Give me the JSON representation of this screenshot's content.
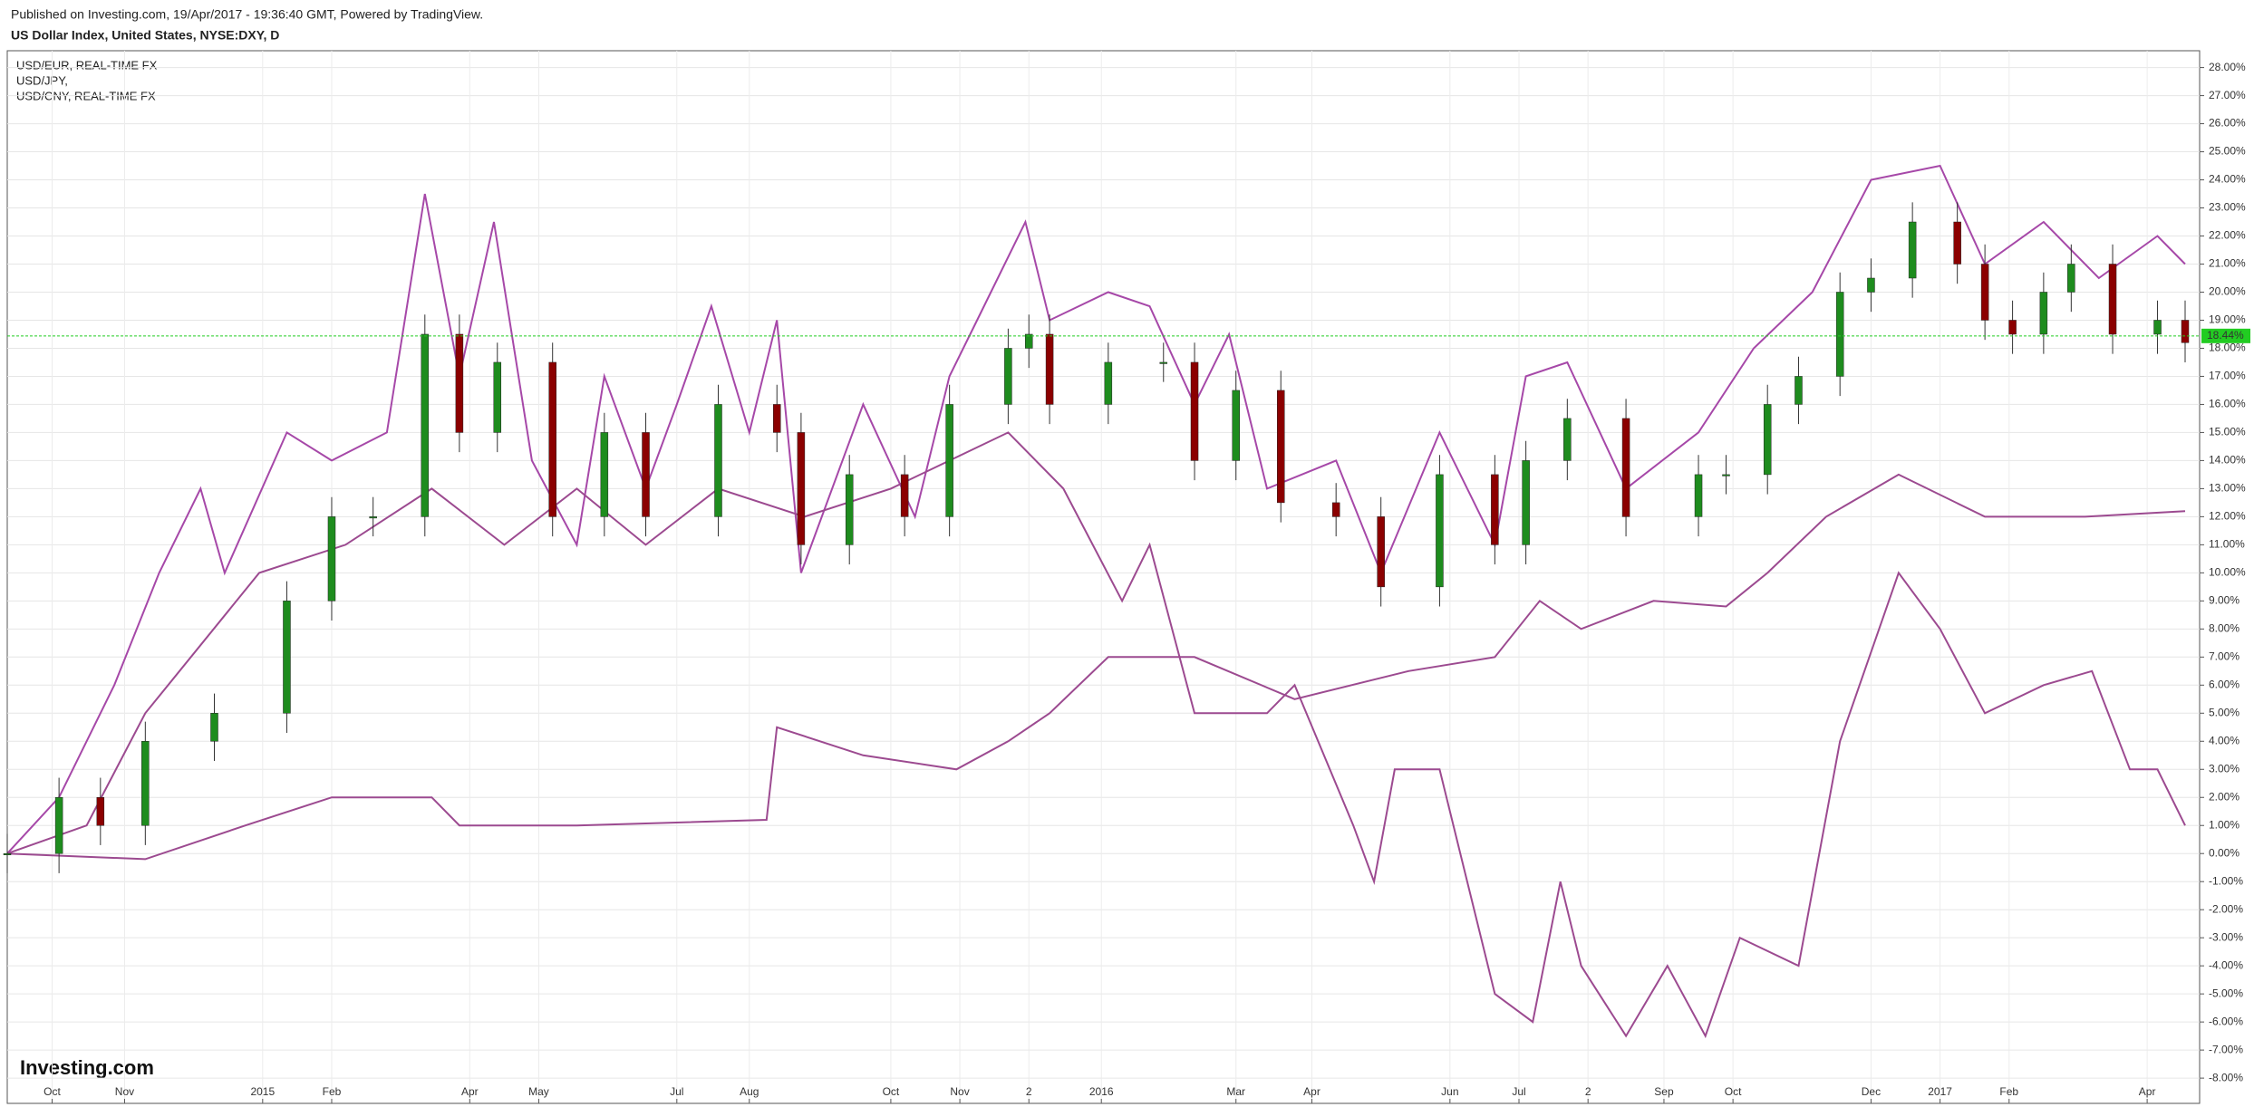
{
  "header": {
    "published": "Published on Investing.com, 19/Apr/2017 - 19:36:40 GMT, Powered by TradingView.",
    "symbol": "US Dollar Index, United States, NYSE:DXY, D"
  },
  "logo": "Investing.com",
  "chart_data": {
    "type": "candlestick",
    "legend": [
      "USD/EUR, REAL-TIME FX",
      "USD/JPY,",
      "USD/CNY, REAL-TIME FX"
    ],
    "xlim": [
      0,
      631
    ],
    "xticks": [
      {
        "value": 13,
        "label": "Oct"
      },
      {
        "value": 34,
        "label": "Nov"
      },
      {
        "value": 74,
        "label": "2015"
      },
      {
        "value": 94,
        "label": "Feb"
      },
      {
        "value": 134,
        "label": "Apr"
      },
      {
        "value": 154,
        "label": "May"
      },
      {
        "value": 194,
        "label": "Jul"
      },
      {
        "value": 215,
        "label": "Aug"
      },
      {
        "value": 256,
        "label": "Oct"
      },
      {
        "value": 276,
        "label": "Nov"
      },
      {
        "value": 296,
        "label": "2"
      },
      {
        "value": 317,
        "label": "2016"
      },
      {
        "value": 356,
        "label": "Mar"
      },
      {
        "value": 378,
        "label": "Apr"
      },
      {
        "value": 418,
        "label": "Jun"
      },
      {
        "value": 438,
        "label": "Jul"
      },
      {
        "value": 458,
        "label": "2"
      },
      {
        "value": 480,
        "label": "Sep"
      },
      {
        "value": 500,
        "label": "Oct"
      },
      {
        "value": 540,
        "label": "Dec"
      },
      {
        "value": 560,
        "label": "2017"
      },
      {
        "value": 580,
        "label": "Feb"
      },
      {
        "value": 620,
        "label": "Apr"
      }
    ],
    "ylim": [
      -8.9,
      28.6
    ],
    "yticks": [
      {
        "value": -8,
        "label": "-8.00%"
      },
      {
        "value": -7,
        "label": "-7.00%"
      },
      {
        "value": -6,
        "label": "-6.00%"
      },
      {
        "value": -5,
        "label": "-5.00%"
      },
      {
        "value": -4,
        "label": "-4.00%"
      },
      {
        "value": -3,
        "label": "-3.00%"
      },
      {
        "value": -2,
        "label": "-2.00%"
      },
      {
        "value": -1,
        "label": "-1.00%"
      },
      {
        "value": 0,
        "label": "0.00%"
      },
      {
        "value": 1,
        "label": "1.00%"
      },
      {
        "value": 2,
        "label": "2.00%"
      },
      {
        "value": 3,
        "label": "3.00%"
      },
      {
        "value": 4,
        "label": "4.00%"
      },
      {
        "value": 5,
        "label": "5.00%"
      },
      {
        "value": 6,
        "label": "6.00%"
      },
      {
        "value": 7,
        "label": "7.00%"
      },
      {
        "value": 8,
        "label": "8.00%"
      },
      {
        "value": 9,
        "label": "9.00%"
      },
      {
        "value": 10,
        "label": "10.00%"
      },
      {
        "value": 11,
        "label": "11.00%"
      },
      {
        "value": 12,
        "label": "12.00%"
      },
      {
        "value": 13,
        "label": "13.00%"
      },
      {
        "value": 14,
        "label": "14.00%"
      },
      {
        "value": 15,
        "label": "15.00%"
      },
      {
        "value": 16,
        "label": "16.00%"
      },
      {
        "value": 17,
        "label": "17.00%"
      },
      {
        "value": 18,
        "label": "18.00%"
      },
      {
        "value": 19,
        "label": "19.00%"
      },
      {
        "value": 20,
        "label": "20.00%"
      },
      {
        "value": 21,
        "label": "21.00%"
      },
      {
        "value": 22,
        "label": "22.00%"
      },
      {
        "value": 23,
        "label": "23.00%"
      },
      {
        "value": 24,
        "label": "24.00%"
      },
      {
        "value": 25,
        "label": "25.00%"
      },
      {
        "value": 26,
        "label": "26.00%"
      },
      {
        "value": 27,
        "label": "27.00%"
      },
      {
        "value": 28,
        "label": "28.00%"
      }
    ],
    "grid": true,
    "ref_line": {
      "value": 18.44,
      "label": "18.44%",
      "color": "#22cc22"
    },
    "candles": {
      "up_color": "#1e8c1e",
      "down_color": "#8b0000",
      "x": [
        0,
        15,
        27,
        40,
        60,
        81,
        94,
        106,
        121,
        131,
        142,
        158,
        173,
        185,
        206,
        223,
        230,
        244,
        260,
        273,
        290,
        296,
        302,
        319,
        335,
        344,
        356,
        369,
        385,
        398,
        415,
        431,
        440,
        452,
        469,
        490,
        498,
        510,
        519,
        531,
        540,
        552,
        565,
        573,
        581,
        590,
        598,
        610,
        623,
        631
      ],
      "open": [
        0,
        0,
        2,
        1,
        4,
        5,
        9,
        12,
        12,
        18.5,
        15,
        17.5,
        12,
        15,
        12,
        16,
        15,
        11,
        13.5,
        12,
        16,
        18,
        18.5,
        16,
        17.5,
        17.5,
        14,
        16.5,
        12.5,
        12,
        9.5,
        13.5,
        11,
        14,
        15.5,
        12,
        13.5,
        13.5,
        16,
        17,
        20,
        20.5,
        22.5,
        21,
        19,
        18.5,
        20,
        21,
        18.5,
        19
      ],
      "high": [
        0.7,
        2.7,
        2.7,
        4.7,
        5.7,
        9.7,
        12.7,
        12.7,
        19.2,
        19.2,
        18.2,
        18.2,
        15.7,
        15.7,
        16.7,
        16.7,
        15.7,
        14.2,
        14.2,
        16.7,
        18.7,
        19.2,
        19.2,
        18.2,
        18.2,
        18.2,
        17.2,
        17.2,
        13.2,
        12.7,
        14.2,
        14.2,
        14.7,
        16.2,
        16.2,
        14.2,
        14.2,
        16.7,
        17.7,
        20.7,
        21.2,
        23.2,
        23.2,
        21.7,
        19.7,
        20.7,
        21.7,
        21.7,
        19.7,
        19.7
      ],
      "low": [
        -0.7,
        -0.7,
        0.3,
        0.3,
        3.3,
        4.3,
        8.3,
        11.3,
        11.3,
        14.3,
        14.3,
        11.3,
        11.3,
        11.3,
        11.3,
        14.3,
        10.3,
        10.3,
        11.3,
        11.3,
        15.3,
        17.3,
        15.3,
        15.3,
        16.8,
        13.3,
        13.3,
        11.8,
        11.3,
        8.8,
        8.8,
        10.3,
        10.3,
        13.3,
        11.3,
        11.3,
        12.8,
        12.8,
        15.3,
        16.3,
        19.3,
        19.8,
        20.3,
        18.3,
        17.8,
        17.8,
        19.3,
        17.8,
        17.8,
        17.5
      ],
      "close": [
        0,
        2,
        1,
        4,
        5,
        9,
        12,
        12,
        18.5,
        15,
        17.5,
        12,
        15,
        12,
        16,
        15,
        11,
        13.5,
        12,
        16,
        18,
        18.5,
        16,
        17.5,
        17.5,
        14,
        16.5,
        12.5,
        12,
        9.5,
        13.5,
        11,
        14,
        15.5,
        12,
        13.5,
        13.5,
        16,
        17,
        20,
        20.5,
        22.5,
        21,
        19,
        18.5,
        20,
        21,
        18.5,
        19,
        18.2
      ]
    },
    "series": [
      {
        "name": "USD/EUR, REAL-TIME FX",
        "color": "#a648a8",
        "x": [
          0,
          15,
          31,
          44,
          56,
          63,
          81,
          94,
          110,
          121,
          131,
          141,
          152,
          165,
          173,
          185,
          194,
          204,
          215,
          223,
          230,
          248,
          263,
          273,
          281,
          295,
          302,
          319,
          331,
          344,
          354,
          365,
          385,
          398,
          415,
          431,
          440,
          452,
          469,
          490,
          506,
          523,
          540,
          560,
          573,
          590,
          606,
          623,
          631
        ],
        "values": [
          0,
          2,
          6,
          10,
          13,
          10,
          15,
          14,
          15,
          23.5,
          17,
          22.5,
          14,
          11,
          17,
          13,
          16,
          19.5,
          15,
          19,
          10,
          16,
          12,
          17,
          19,
          22.5,
          19,
          20,
          19.5,
          16,
          18.5,
          13,
          14,
          10,
          15,
          11,
          17,
          17.5,
          13,
          15,
          18,
          20,
          24,
          24.5,
          21,
          22.5,
          20.5,
          22,
          21
        ]
      },
      {
        "name": "USD/JPY,",
        "color": "#9c4a90",
        "x": [
          0,
          23,
          40,
          73,
          98,
          123,
          144,
          165,
          185,
          206,
          231,
          256,
          290,
          306,
          323,
          331,
          344,
          365,
          373,
          390,
          396,
          402,
          415,
          423,
          431,
          442,
          450,
          456,
          469,
          481,
          492,
          502,
          519,
          531,
          548,
          560,
          573,
          590,
          604,
          615,
          623,
          631
        ],
        "values": [
          0,
          1,
          5,
          10,
          11,
          13,
          11,
          13,
          11,
          13,
          12,
          13,
          15,
          13,
          9,
          11,
          5,
          5,
          6,
          1,
          -1,
          3,
          3,
          -1,
          -5,
          -6,
          -1,
          -4,
          -6.5,
          -4,
          -6.5,
          -3,
          -4,
          4,
          10,
          8,
          5,
          6,
          6.5,
          3,
          3,
          1
        ]
      },
      {
        "name": "USD/CNY, REAL-TIME FX",
        "color": "#9c4a90",
        "x": [
          0,
          40,
          69,
          94,
          123,
          131,
          165,
          220,
          223,
          248,
          275,
          290,
          302,
          319,
          344,
          373,
          406,
          431,
          444,
          456,
          477,
          498,
          510,
          527,
          548,
          573,
          602,
          631
        ],
        "values": [
          0,
          -0.2,
          1,
          2,
          2,
          1,
          1,
          1.2,
          4.5,
          3.5,
          3,
          4,
          5,
          7,
          7,
          5.5,
          6.5,
          7,
          9,
          8,
          9,
          8.8,
          10,
          12,
          13.5,
          12,
          12,
          12.2
        ]
      }
    ]
  }
}
